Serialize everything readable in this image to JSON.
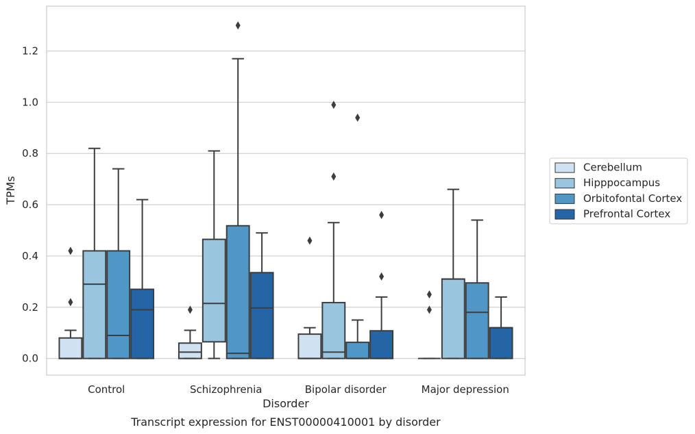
{
  "chart_data": {
    "type": "box",
    "xlabel": "Disorder",
    "ylabel": "TPMs",
    "caption": "Transcript expression for ENST00000410001 by disorder",
    "ylim": [
      -0.065,
      1.375
    ],
    "yticks": [
      "0.0",
      "0.2",
      "0.4",
      "0.6",
      "0.8",
      "1.0",
      "1.2"
    ],
    "grid": "horizontal",
    "legend_position": "right",
    "categories": [
      "Control",
      "Schizophrenia",
      "Bipolar disorder",
      "Major depression"
    ],
    "series": [
      {
        "name": "Cerebellum",
        "color": "#d0e1f2",
        "boxes": [
          {
            "whislo": 0.0,
            "q1": 0.0,
            "med": 0.0,
            "q3": 0.08,
            "whishi": 0.11,
            "fliers": [
              0.22,
              0.42
            ]
          },
          {
            "whislo": 0.0,
            "q1": 0.0,
            "med": 0.025,
            "q3": 0.06,
            "whishi": 0.11,
            "fliers": [
              0.19
            ]
          },
          {
            "whislo": 0.0,
            "q1": 0.0,
            "med": 0.0,
            "q3": 0.095,
            "whishi": 0.12,
            "fliers": [
              0.46
            ]
          },
          {
            "whislo": 0.0,
            "q1": 0.0,
            "med": 0.0,
            "q3": 0.0,
            "whishi": 0.0,
            "fliers": [
              0.19,
              0.25
            ]
          }
        ]
      },
      {
        "name": "Hipppocampus",
        "color": "#9ac5de",
        "boxes": [
          {
            "whislo": 0.0,
            "q1": 0.0,
            "med": 0.29,
            "q3": 0.42,
            "whishi": 0.82,
            "fliers": []
          },
          {
            "whislo": 0.0,
            "q1": 0.065,
            "med": 0.215,
            "q3": 0.465,
            "whishi": 0.81,
            "fliers": []
          },
          {
            "whislo": 0.0,
            "q1": 0.0,
            "med": 0.025,
            "q3": 0.218,
            "whishi": 0.53,
            "fliers": [
              0.71,
              0.99
            ]
          },
          {
            "whislo": 0.0,
            "q1": 0.0,
            "med": 0.31,
            "q3": 0.31,
            "whishi": 0.66,
            "fliers": []
          }
        ]
      },
      {
        "name": "Orbitofontal Cortex",
        "color": "#5096c6",
        "boxes": [
          {
            "whislo": 0.0,
            "q1": 0.0,
            "med": 0.09,
            "q3": 0.42,
            "whishi": 0.74,
            "fliers": []
          },
          {
            "whislo": 0.0,
            "q1": 0.0,
            "med": 0.02,
            "q3": 0.518,
            "whishi": 1.17,
            "fliers": [
              1.3
            ]
          },
          {
            "whislo": 0.0,
            "q1": 0.0,
            "med": 0.0,
            "q3": 0.063,
            "whishi": 0.15,
            "fliers": [
              0.94
            ]
          },
          {
            "whislo": 0.0,
            "q1": 0.0,
            "med": 0.18,
            "q3": 0.295,
            "whishi": 0.54,
            "fliers": []
          }
        ]
      },
      {
        "name": "Prefrontal Cortex",
        "color": "#2565a5",
        "boxes": [
          {
            "whislo": 0.0,
            "q1": 0.0,
            "med": 0.19,
            "q3": 0.27,
            "whishi": 0.62,
            "fliers": []
          },
          {
            "whislo": 0.0,
            "q1": 0.0,
            "med": 0.197,
            "q3": 0.335,
            "whishi": 0.49,
            "fliers": []
          },
          {
            "whislo": 0.0,
            "q1": 0.0,
            "med": 0.0,
            "q3": 0.108,
            "whishi": 0.24,
            "fliers": [
              0.32,
              0.56
            ]
          },
          {
            "whislo": 0.0,
            "q1": 0.0,
            "med": 0.12,
            "q3": 0.12,
            "whishi": 0.24,
            "fliers": []
          }
        ]
      }
    ]
  }
}
